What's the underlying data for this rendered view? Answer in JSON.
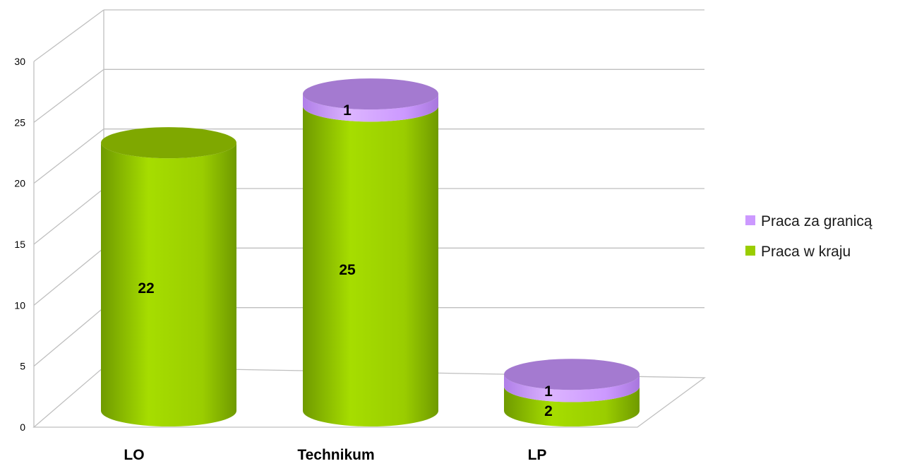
{
  "chart_data": {
    "type": "bar",
    "style": "3d-stacked-cylinder",
    "categories": [
      "LO",
      "Technikum",
      "LP"
    ],
    "series": [
      {
        "name": "Praca w kraju",
        "values": [
          22,
          25,
          2
        ],
        "color": "#9ACD00"
      },
      {
        "name": "Praca za granicą",
        "values": [
          0,
          1,
          1
        ],
        "color": "#CC99FF"
      }
    ],
    "data_labels": [
      {
        "series": 0,
        "category": 0,
        "text": "22"
      },
      {
        "series": 0,
        "category": 1,
        "text": "25"
      },
      {
        "series": 1,
        "category": 1,
        "text": "1"
      },
      {
        "series": 0,
        "category": 2,
        "text": "2"
      },
      {
        "series": 1,
        "category": 2,
        "text": "1"
      }
    ],
    "y_ticks": [
      0,
      5,
      10,
      15,
      20,
      25,
      30
    ],
    "ylim": [
      0,
      30
    ],
    "grid": true,
    "legend_position": "right",
    "legend_order": [
      1,
      0
    ]
  }
}
